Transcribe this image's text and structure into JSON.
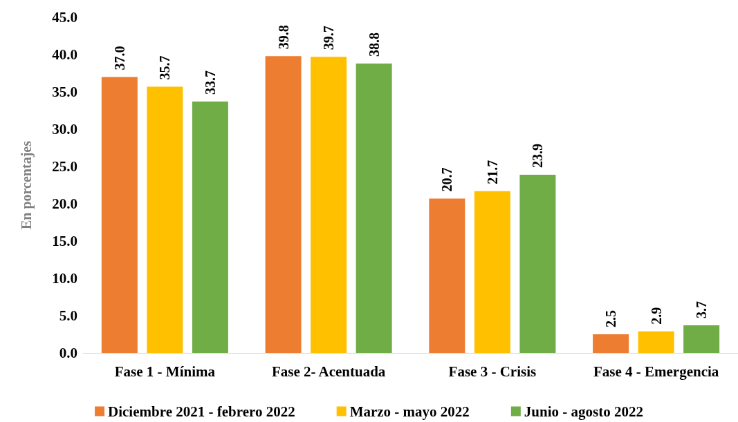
{
  "chart_data": {
    "type": "bar",
    "ylabel": "En porcentajes",
    "categories": [
      "Fase 1 - Mínima",
      "Fase 2- Acentuada",
      "Fase 3 - Crisis",
      "Fase 4 - Emergencia"
    ],
    "series": [
      {
        "name": "Diciembre 2021 - febrero 2022",
        "color": "#ed7d31",
        "values": [
          37.0,
          39.8,
          20.7,
          2.5
        ],
        "value_labels": [
          "37.0",
          "39.8",
          "20.7",
          "2.5"
        ]
      },
      {
        "name": "Marzo - mayo 2022",
        "color": "#ffc000",
        "values": [
          35.7,
          39.7,
          21.7,
          2.9
        ],
        "value_labels": [
          "35.7",
          "39.7",
          "21.7",
          "2.9"
        ]
      },
      {
        "name": "Junio - agosto 2022",
        "color": "#70ad47",
        "values": [
          33.7,
          38.8,
          23.9,
          3.7
        ],
        "value_labels": [
          "33.7",
          "38.8",
          "23.9",
          "3.7"
        ]
      }
    ],
    "ylim": [
      0,
      45
    ],
    "yticks": [
      {
        "value": 0,
        "label": "0.0"
      },
      {
        "value": 5,
        "label": "5.0"
      },
      {
        "value": 10,
        "label": "10.0"
      },
      {
        "value": 15,
        "label": "15.0"
      },
      {
        "value": 20,
        "label": "20.0"
      },
      {
        "value": 25,
        "label": "25.0"
      },
      {
        "value": 30,
        "label": "30.0"
      },
      {
        "value": 35,
        "label": "35.0"
      },
      {
        "value": 40,
        "label": "40.0"
      },
      {
        "value": 45,
        "label": "45.0"
      }
    ],
    "grid": false,
    "legend": "bottom"
  }
}
